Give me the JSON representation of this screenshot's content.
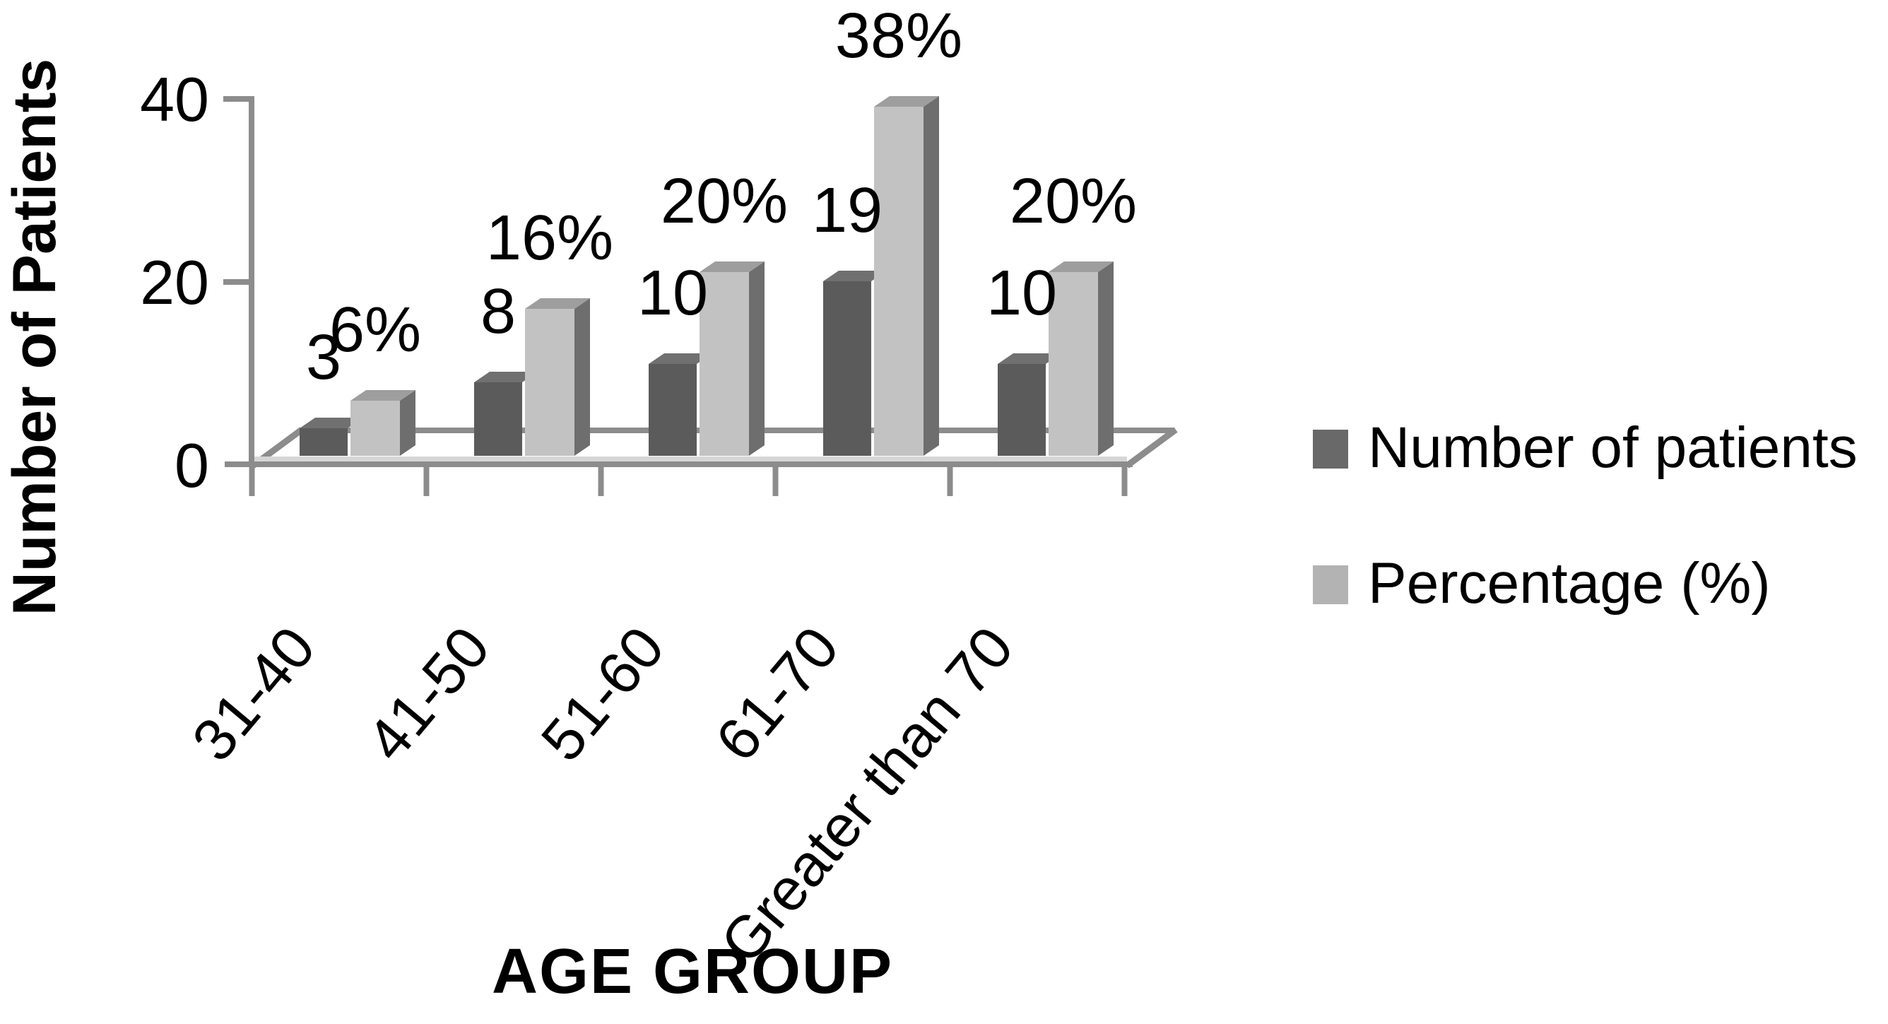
{
  "chart_data": {
    "type": "bar",
    "variant": "3d-clustered-column",
    "title": "",
    "xlabel": "AGE GROUP",
    "ylabel": "Number of Patients",
    "categories": [
      "31-40",
      "41-50",
      "51-60",
      "61-70",
      "Greater than 70"
    ],
    "series": [
      {
        "name": "Number of patients",
        "values": [
          3,
          8,
          10,
          19,
          10
        ],
        "labels": [
          "3",
          "8",
          "10",
          "19",
          "10"
        ],
        "color": "#5b5b5b",
        "top_color": "#707070",
        "side_color": "#4a4a4a",
        "legend_color": "#696969"
      },
      {
        "name": "Percentage (%)",
        "values": [
          6,
          16,
          20,
          38,
          20
        ],
        "labels": [
          "6%",
          "16%",
          "20%",
          "38%",
          "20%"
        ],
        "color": "#c2c2c2",
        "top_color": "#9e9e9e",
        "side_color": "#6e6e6e",
        "legend_color": "#b3b3b3"
      }
    ],
    "yticks": [
      0,
      20,
      40
    ],
    "ylim": [
      0,
      40
    ],
    "legend_position": "right",
    "grid": false,
    "background": "#ffffff",
    "axis_color": "#8c8c8c",
    "axis_highlight_color": "#d6d6d6",
    "text_color": "#000000"
  }
}
